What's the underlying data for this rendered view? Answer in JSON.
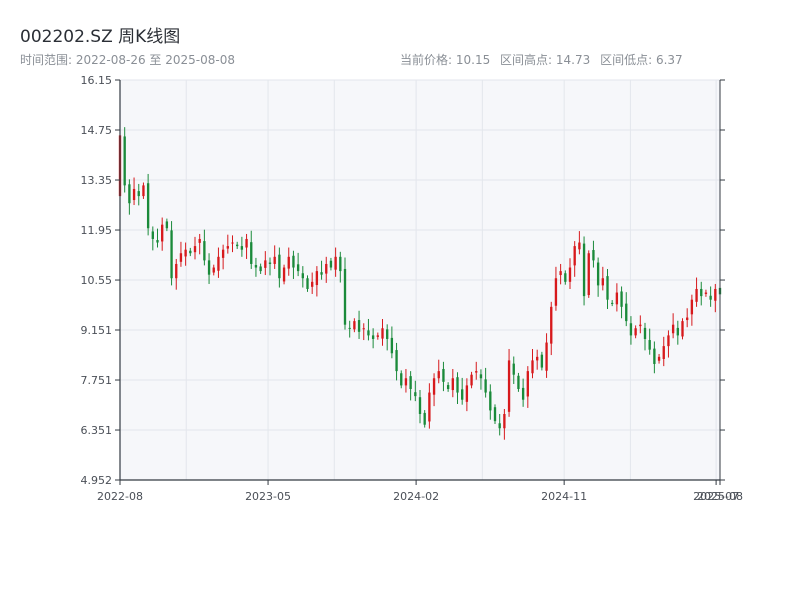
{
  "title": "002202.SZ 周K线图",
  "subtitle": "时间范围: 2022-08-26 至 2025-08-08",
  "stats": {
    "current": "当前价格: 10.15",
    "high": "区间高点: 14.73",
    "low": "区间低点: 6.37"
  },
  "colors": {
    "up": "#d7191c",
    "down": "#1a8a3a",
    "plot_bg": "#f6f7fa",
    "grid": "#e3e6ec",
    "axis": "#333a42"
  },
  "chart_data": {
    "type": "candlestick",
    "title": "002202.SZ 周K线图",
    "ylim": [
      4.952,
      16.15
    ],
    "yticks": [
      "4.952",
      "6.351",
      "7.751",
      "9.151",
      "10.55",
      "11.95",
      "13.35",
      "14.75",
      "16.15"
    ],
    "xlim": [
      "2022-08-26",
      "2025-08-08"
    ],
    "xticks": [
      "2022-08",
      "2023-05",
      "2024-02",
      "2024-11",
      "2025-07",
      "2025-08"
    ],
    "grid": true,
    "closes": [
      14.6,
      13.2,
      12.7,
      13.1,
      12.9,
      13.2,
      12.0,
      11.7,
      11.6,
      12.1,
      12.0,
      10.6,
      11.0,
      11.3,
      11.4,
      11.3,
      11.5,
      11.7,
      11.1,
      10.7,
      10.9,
      11.2,
      11.4,
      11.5,
      11.6,
      11.5,
      11.4,
      11.7,
      11.0,
      10.9,
      10.8,
      11.1,
      11.0,
      11.2,
      10.6,
      10.9,
      11.2,
      10.9,
      10.8,
      10.6,
      10.3,
      10.5,
      10.8,
      10.7,
      11.0,
      10.9,
      11.2,
      10.8,
      9.3,
      9.2,
      9.4,
      9.1,
      9.2,
      9.0,
      8.9,
      9.0,
      9.2,
      8.9,
      8.5,
      8.0,
      7.6,
      7.8,
      7.5,
      7.3,
      6.8,
      6.5,
      7.4,
      7.8,
      8.0,
      7.7,
      7.5,
      7.8,
      7.4,
      7.2,
      7.6,
      7.9,
      8.0,
      7.8,
      7.4,
      6.9,
      6.6,
      6.4,
      6.8,
      8.3,
      7.9,
      7.5,
      7.2,
      8.0,
      8.3,
      8.4,
      8.1,
      8.8,
      9.8,
      10.6,
      10.8,
      10.5,
      10.9,
      11.5,
      11.6,
      10.1,
      11.3,
      11.1,
      10.4,
      10.6,
      10.0,
      9.9,
      10.2,
      9.8,
      9.4,
      9.0,
      9.2,
      9.3,
      8.9,
      8.6,
      8.2,
      8.4,
      8.7,
      9.0,
      9.3,
      9.0,
      9.4,
      9.5,
      10.0,
      10.3,
      10.1,
      10.2,
      10.0,
      10.3,
      10.15
    ]
  }
}
